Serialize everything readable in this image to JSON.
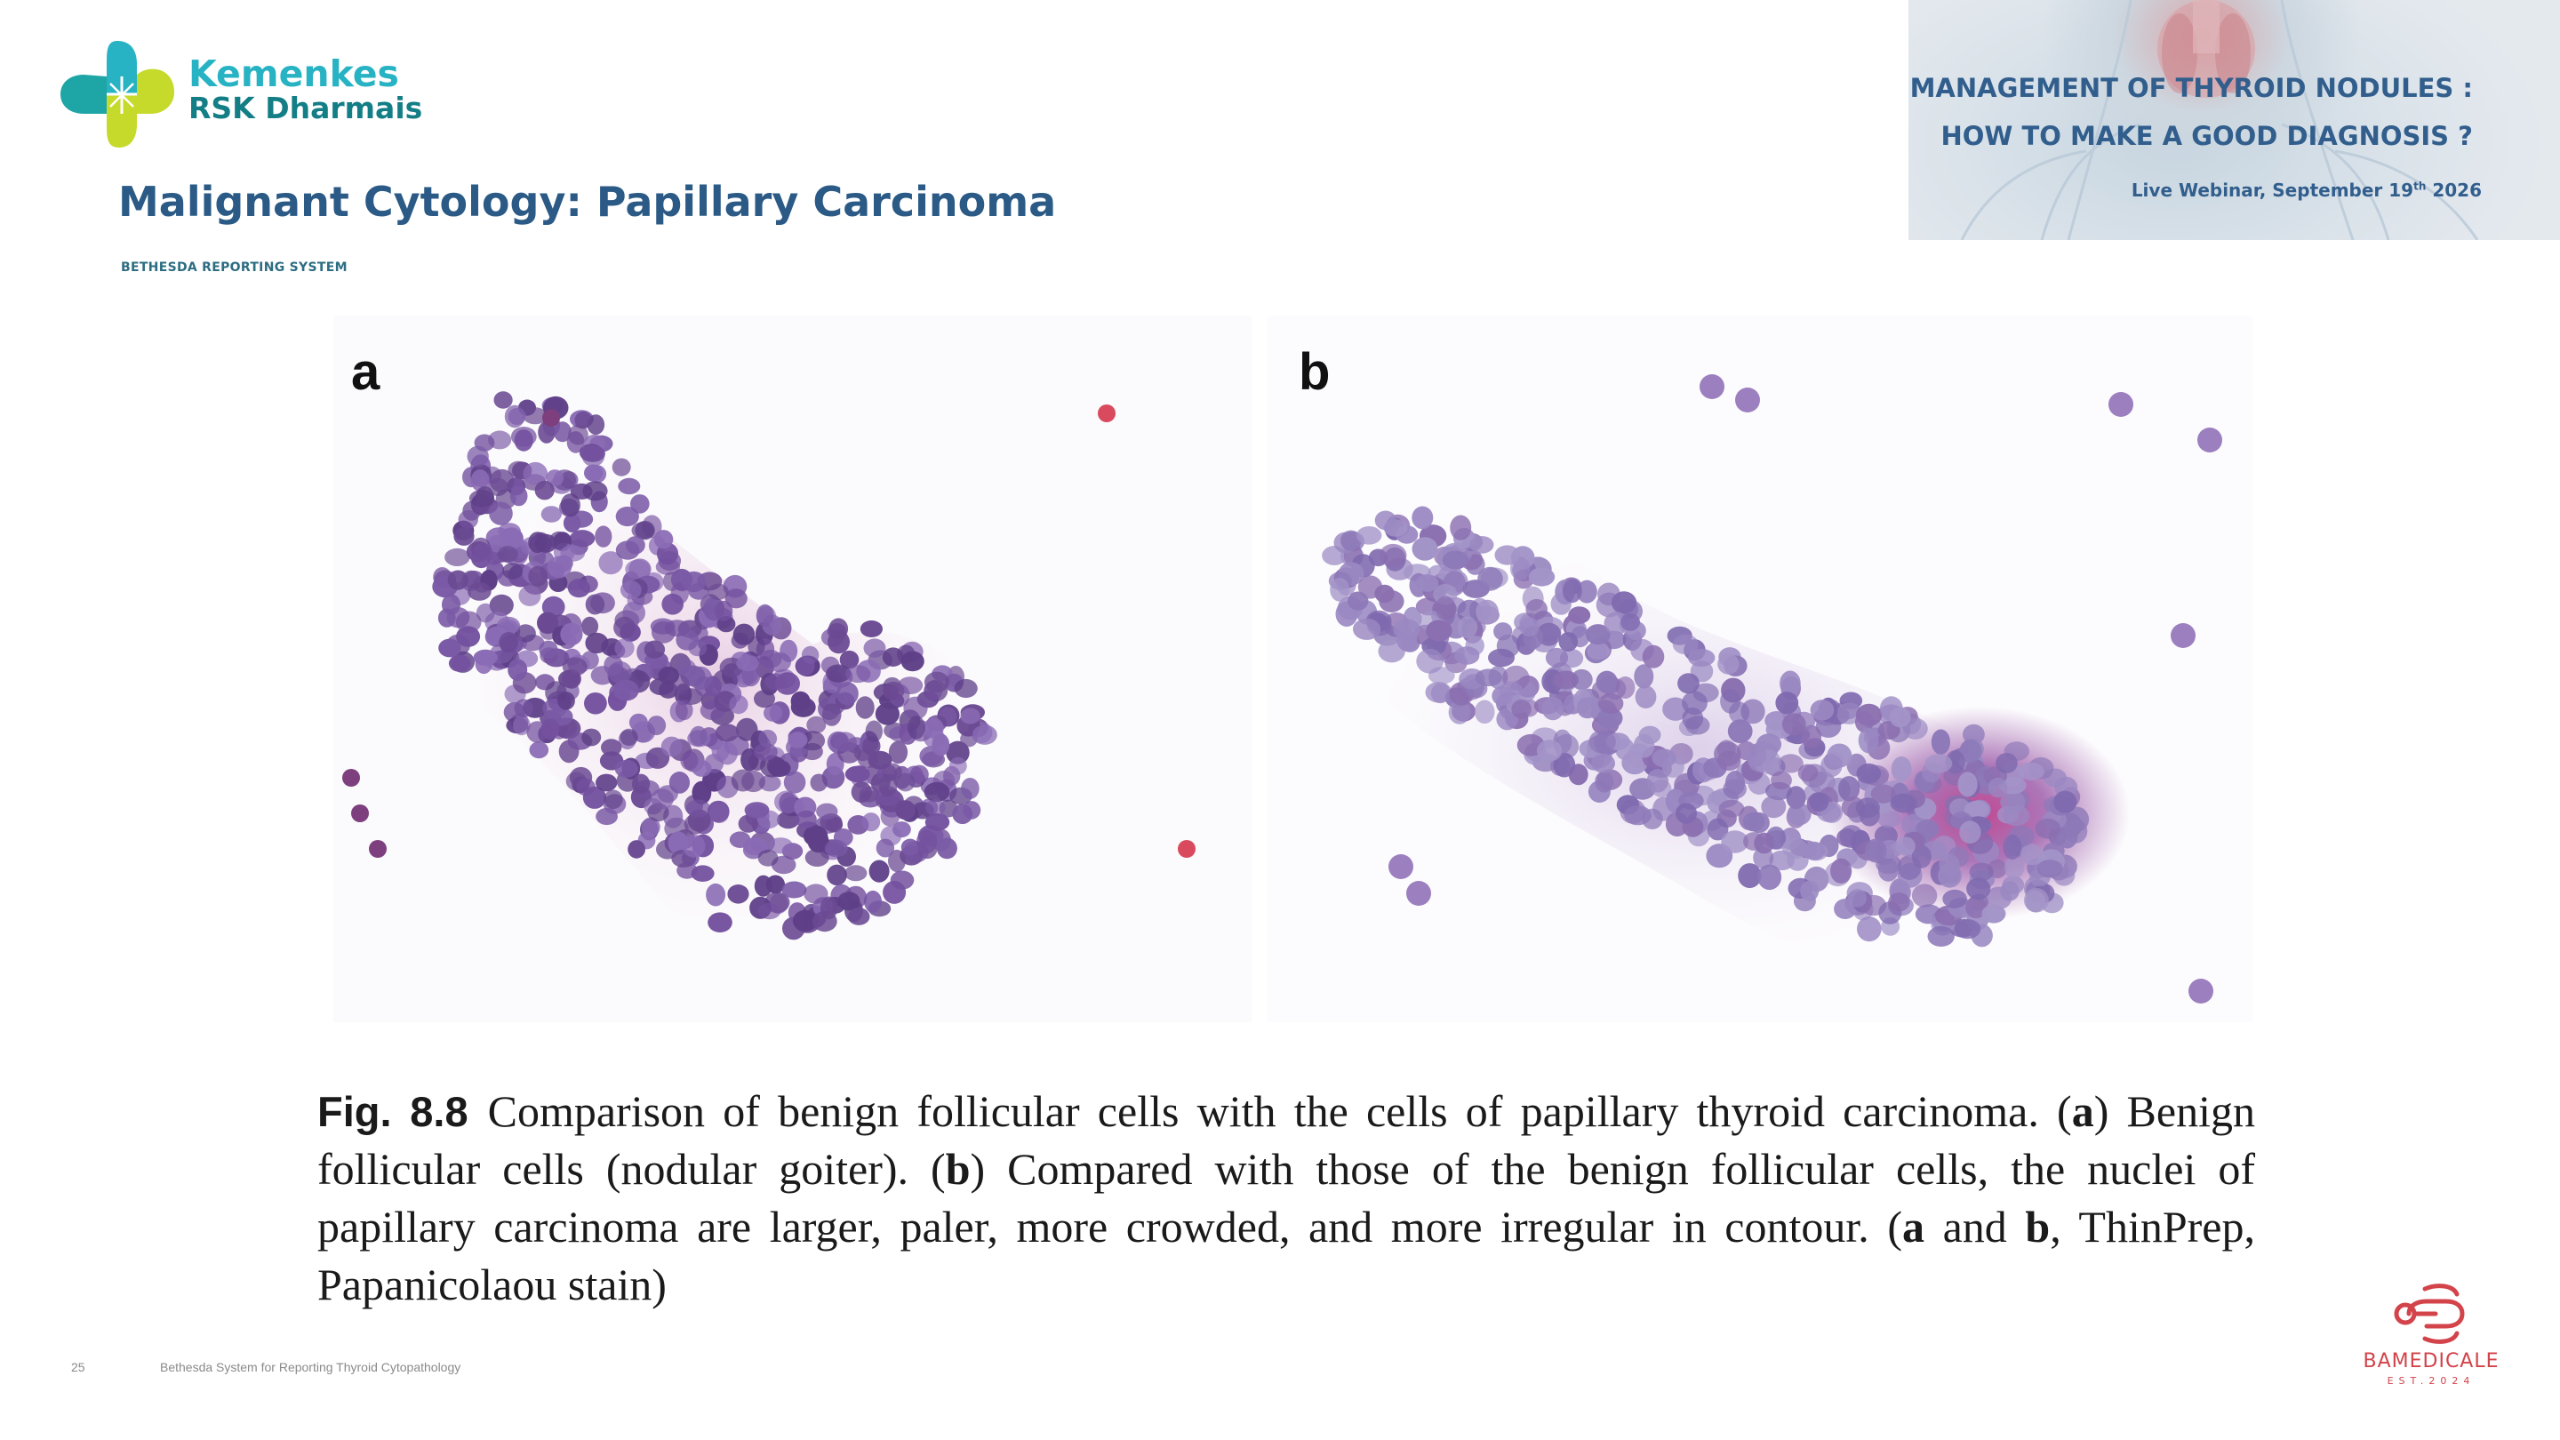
{
  "logo": {
    "line1": "Kemenkes",
    "line2": "RSK Dharmais",
    "colors": {
      "teal": "#27b3c3",
      "dark_teal": "#147e86",
      "lime": "#c5da2a"
    }
  },
  "slide": {
    "title": "Malignant Cytology: Papillary Carcinoma",
    "subtitle": "BETHESDA REPORTING SYSTEM"
  },
  "banner": {
    "title_line1": "MANAGEMENT OF THYROID NODULES :",
    "title_line2": "HOW TO MAKE A GOOD DIAGNOSIS ?",
    "date_prefix": "Live Webinar, September 19",
    "date_sup": "th",
    "date_suffix": " 2026",
    "color": "#315e8c"
  },
  "figure": {
    "panel_a": "a",
    "panel_b": "b",
    "fig_label": "Fig. 8.8",
    "caption_1": "Comparison of benign follicular cells with the cells of papillary thyroid carcinoma. (",
    "caption_2": "a",
    "caption_3": ") Benign follicular cells (nodular goiter). (",
    "caption_4": "b",
    "caption_5": ") Compared with those of the benign follicular cells, the nuclei of papillary carcinoma are larger, paler, more crowded, and more irregular in contour. (",
    "caption_6": "a",
    "caption_7": " and ",
    "caption_8": "b",
    "caption_9": ", ThinPrep, Papanicolaou stain)"
  },
  "footer": {
    "page_number": "25",
    "text": "Bethesda System for Reporting Thyroid Cytopathology"
  },
  "brand": {
    "name": "BAMEDICALE",
    "est": "EST.2024",
    "color": "#d2434a"
  }
}
